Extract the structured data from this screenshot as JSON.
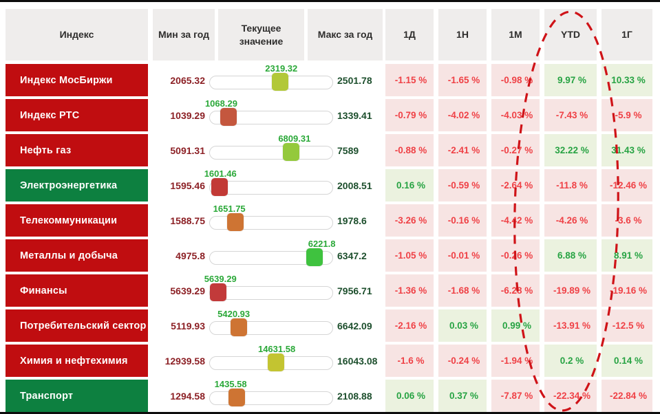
{
  "header": {
    "index": "Индекс",
    "min": "Мин за год",
    "current": "Текущее значение",
    "max": "Макс за год",
    "d1": "1Д",
    "w1": "1Н",
    "m1": "1М",
    "ytd": "YTD",
    "y1": "1Г"
  },
  "colors": {
    "red_label": "#c00d10",
    "green_label": "#0d8040",
    "header_bg": "#efedec",
    "pink_bg": "#f7e4e3",
    "green_bg": "#ebf2df",
    "red_text": "#ef4146",
    "green_text": "#27a343",
    "min_text": "#8c2025",
    "max_text": "#1d4f2d",
    "current_text": "#2aa838",
    "annotation": "#cf1318"
  },
  "annotation": {
    "type": "dashed-ellipse",
    "highlighted_column": "YTD",
    "color": "#cf1318"
  },
  "rows": [
    {
      "name": "Индекс МосБиржи",
      "label_theme": "red",
      "min": "2065.32",
      "current": "2319.32",
      "max": "2501.78",
      "slider_pct": 58.2,
      "handle_color": "#b2c838",
      "d1": "-1.15 %",
      "w1": "-1.65 %",
      "m1": "-0.98 %",
      "ytd": "9.97 %",
      "y1": "10.33 %"
    },
    {
      "name": "Индекс РТС",
      "label_theme": "red",
      "min": "1039.29",
      "current": "1068.29",
      "max": "1339.41",
      "slider_pct": 9.7,
      "handle_color": "#c4573e",
      "d1": "-0.79 %",
      "w1": "-4.02 %",
      "m1": "-4.03 %",
      "ytd": "-7.43 %",
      "y1": "-5.9 %"
    },
    {
      "name": "Нефть газ",
      "label_theme": "red",
      "min": "5091.31",
      "current": "6809.31",
      "max": "7589",
      "slider_pct": 68.8,
      "handle_color": "#94c93c",
      "d1": "-0.88 %",
      "w1": "-2.41 %",
      "m1": "-0.27 %",
      "ytd": "32.22 %",
      "y1": "31.43 %"
    },
    {
      "name": "Электроэнергетика",
      "label_theme": "green",
      "min": "1595.46",
      "current": "1601.46",
      "max": "2008.51",
      "slider_pct": 1.5,
      "handle_color": "#c23a36",
      "d1": "0.16 %",
      "w1": "-0.59 %",
      "m1": "-2.64 %",
      "ytd": "-11.8 %",
      "y1": "-12.46 %"
    },
    {
      "name": "Телекоммуникации",
      "label_theme": "red",
      "min": "1588.75",
      "current": "1651.75",
      "max": "1978.6",
      "slider_pct": 16.2,
      "handle_color": "#ce7433",
      "d1": "-3.26 %",
      "w1": "-0.16 %",
      "m1": "-4.42 %",
      "ytd": "-4.26 %",
      "y1": "-3.6 %"
    },
    {
      "name": "Металлы и добыча",
      "label_theme": "red",
      "min": "4975.8",
      "current": "6221.8",
      "max": "6347.2",
      "slider_pct": 90.9,
      "handle_color": "#3fc23f",
      "d1": "-1.05 %",
      "w1": "-0.01 %",
      "m1": "-0.26 %",
      "ytd": "6.88 %",
      "y1": "8.91 %"
    },
    {
      "name": "Финансы",
      "label_theme": "red",
      "min": "5639.29",
      "current": "5639.29",
      "max": "7956.71",
      "slider_pct": 0,
      "handle_color": "#c23a3a",
      "d1": "-1.36 %",
      "w1": "-1.68 %",
      "m1": "-6.28 %",
      "ytd": "-19.89 %",
      "y1": "-19.16 %"
    },
    {
      "name": "Потребительский сектор",
      "label_theme": "red",
      "min": "5119.93",
      "current": "5420.93",
      "max": "6642.09",
      "slider_pct": 19.8,
      "handle_color": "#ce7433",
      "d1": "-2.16 %",
      "w1": "0.03 %",
      "m1": "0.99 %",
      "ytd": "-13.91 %",
      "y1": "-12.5 %"
    },
    {
      "name": "Химия и нефтехимия",
      "label_theme": "red",
      "min": "12939.58",
      "current": "14631.58",
      "max": "16043.08",
      "slider_pct": 54.5,
      "handle_color": "#c3c431",
      "d1": "-1.6 %",
      "w1": "-0.24 %",
      "m1": "-1.94 %",
      "ytd": "0.2 %",
      "y1": "0.14 %"
    },
    {
      "name": "Транспорт",
      "label_theme": "green",
      "min": "1294.58",
      "current": "1435.58",
      "max": "2108.88",
      "slider_pct": 17.3,
      "handle_color": "#ce7433",
      "d1": "0.06 %",
      "w1": "0.37 %",
      "m1": "-7.87 %",
      "ytd": "-22.34 %",
      "y1": "-22.84 %"
    }
  ],
  "chart_data": {
    "type": "table",
    "title": "",
    "columns": [
      "Индекс",
      "Мин за год",
      "Текущее значение",
      "Макс за год",
      "1Д",
      "1Н",
      "1М",
      "YTD",
      "1Г"
    ],
    "rows": [
      [
        "Индекс МосБиржи",
        2065.32,
        2319.32,
        2501.78,
        -1.15,
        -1.65,
        -0.98,
        9.97,
        10.33
      ],
      [
        "Индекс РТС",
        1039.29,
        1068.29,
        1339.41,
        -0.79,
        -4.02,
        -4.03,
        -7.43,
        -5.9
      ],
      [
        "Нефть газ",
        5091.31,
        6809.31,
        7589,
        -0.88,
        -2.41,
        -0.27,
        32.22,
        31.43
      ],
      [
        "Электроэнергетика",
        1595.46,
        1601.46,
        2008.51,
        0.16,
        -0.59,
        -2.64,
        -11.8,
        -12.46
      ],
      [
        "Телекоммуникации",
        1588.75,
        1651.75,
        1978.6,
        -3.26,
        -0.16,
        -4.42,
        -4.26,
        -3.6
      ],
      [
        "Металлы и добыча",
        4975.8,
        6221.8,
        6347.2,
        -1.05,
        -0.01,
        -0.26,
        6.88,
        8.91
      ],
      [
        "Финансы",
        5639.29,
        5639.29,
        7956.71,
        -1.36,
        -1.68,
        -6.28,
        -19.89,
        -19.16
      ],
      [
        "Потребительский сектор",
        5119.93,
        5420.93,
        6642.09,
        -2.16,
        0.03,
        0.99,
        -13.91,
        -12.5
      ],
      [
        "Химия и нефтехимия",
        12939.58,
        14631.58,
        16043.08,
        -1.6,
        -0.24,
        -1.94,
        0.2,
        0.14
      ],
      [
        "Транспорт",
        1294.58,
        1435.58,
        2108.88,
        0.06,
        0.37,
        -7.87,
        -22.34,
        -22.84
      ]
    ],
    "legend_position": "none",
    "grid": false,
    "annotations": [
      "red dashed ellipse highlighting the YTD column"
    ]
  }
}
